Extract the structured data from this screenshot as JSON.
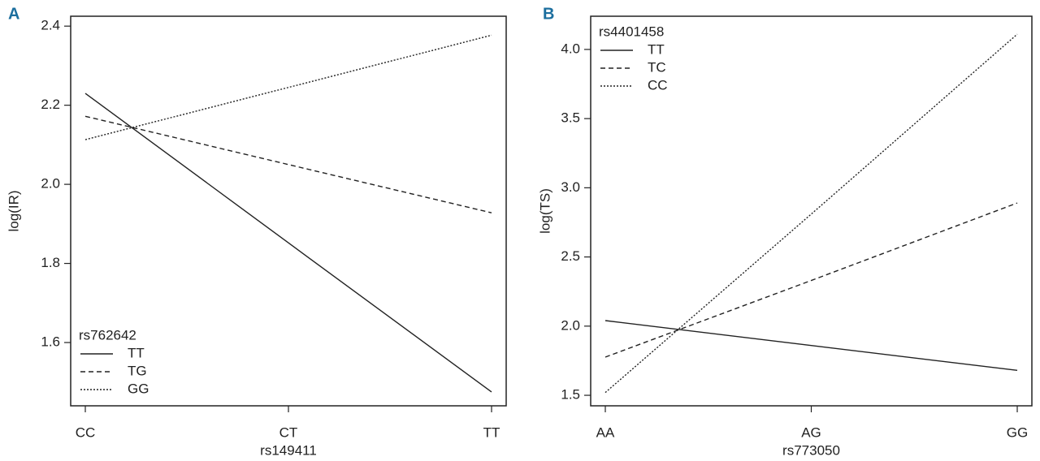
{
  "chart_data": [
    {
      "type": "line",
      "panel_label": "A",
      "x_label": "rs149411",
      "y_label": "log(IR)",
      "categories": [
        "CC",
        "CT",
        "TT"
      ],
      "ylim": [
        1.44,
        2.425
      ],
      "yticks": [
        1.6,
        1.8,
        {
          "value": 2.0,
          "label": "2.0"
        },
        2.2,
        2.4
      ],
      "legend_title": "rs762642",
      "legend": "lower left",
      "series": [
        {
          "name": "TT",
          "color": "#222222",
          "dash": "solid",
          "values": [
            2.23,
            1.852,
            1.475
          ]
        },
        {
          "name": "TG",
          "color": "#222222",
          "dash": "dashed",
          "values": [
            2.172,
            2.05,
            1.928
          ]
        },
        {
          "name": "GG",
          "color": "#222222",
          "dash": "dotted",
          "values": [
            2.113,
            2.245,
            2.377
          ]
        }
      ]
    },
    {
      "type": "line",
      "panel_label": "B",
      "x_label": "rs773050",
      "y_label": "log(TS)",
      "categories": [
        "AA",
        "AG",
        "GG"
      ],
      "ylim": [
        1.424,
        4.24
      ],
      "yticks": [
        1.5,
        {
          "value": 2.0,
          "label": "2.0"
        },
        2.5,
        {
          "value": 3.0,
          "label": "3.0"
        },
        3.5,
        {
          "value": 4.0,
          "label": "4.0"
        }
      ],
      "legend_title": "rs4401458",
      "legend": "upper left",
      "series": [
        {
          "name": "TT",
          "color": "#222222",
          "dash": "solid",
          "values": [
            2.04,
            1.86,
            1.68
          ]
        },
        {
          "name": "TC",
          "color": "#222222",
          "dash": "dashed",
          "values": [
            1.776,
            2.33,
            2.89
          ]
        },
        {
          "name": "CC",
          "color": "#222222",
          "dash": "dotted",
          "values": [
            1.52,
            2.81,
            4.11
          ]
        }
      ]
    }
  ]
}
